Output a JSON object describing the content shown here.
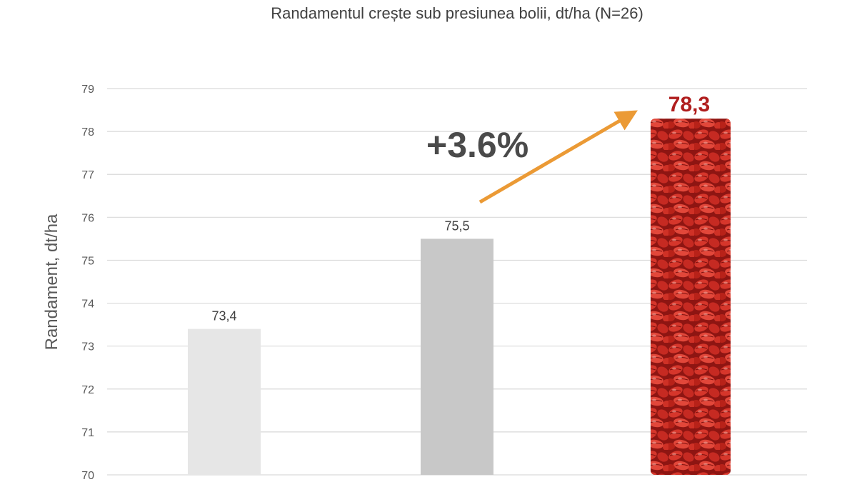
{
  "chart_data": {
    "type": "bar",
    "title": "Randamentul crește sub presiunea bolii, dt/ha (N=26)",
    "xlabel": "",
    "ylabel": "Randament, dt/ha",
    "ylim": [
      70,
      79
    ],
    "yticks": [
      70,
      71,
      72,
      73,
      74,
      75,
      76,
      77,
      78,
      79
    ],
    "grid": true,
    "categories": [
      "",
      "",
      ""
    ],
    "values": [
      73.4,
      75.5,
      78.3
    ],
    "data_labels": [
      "73,4",
      "75,5",
      "78,3"
    ],
    "annotation": "+3.6%",
    "colors": [
      "#e6e6e6",
      "#c8c8c8",
      "#c62a22"
    ],
    "highlight_label_color": "#b01e1e",
    "arrow_color": "#eb9a35"
  }
}
